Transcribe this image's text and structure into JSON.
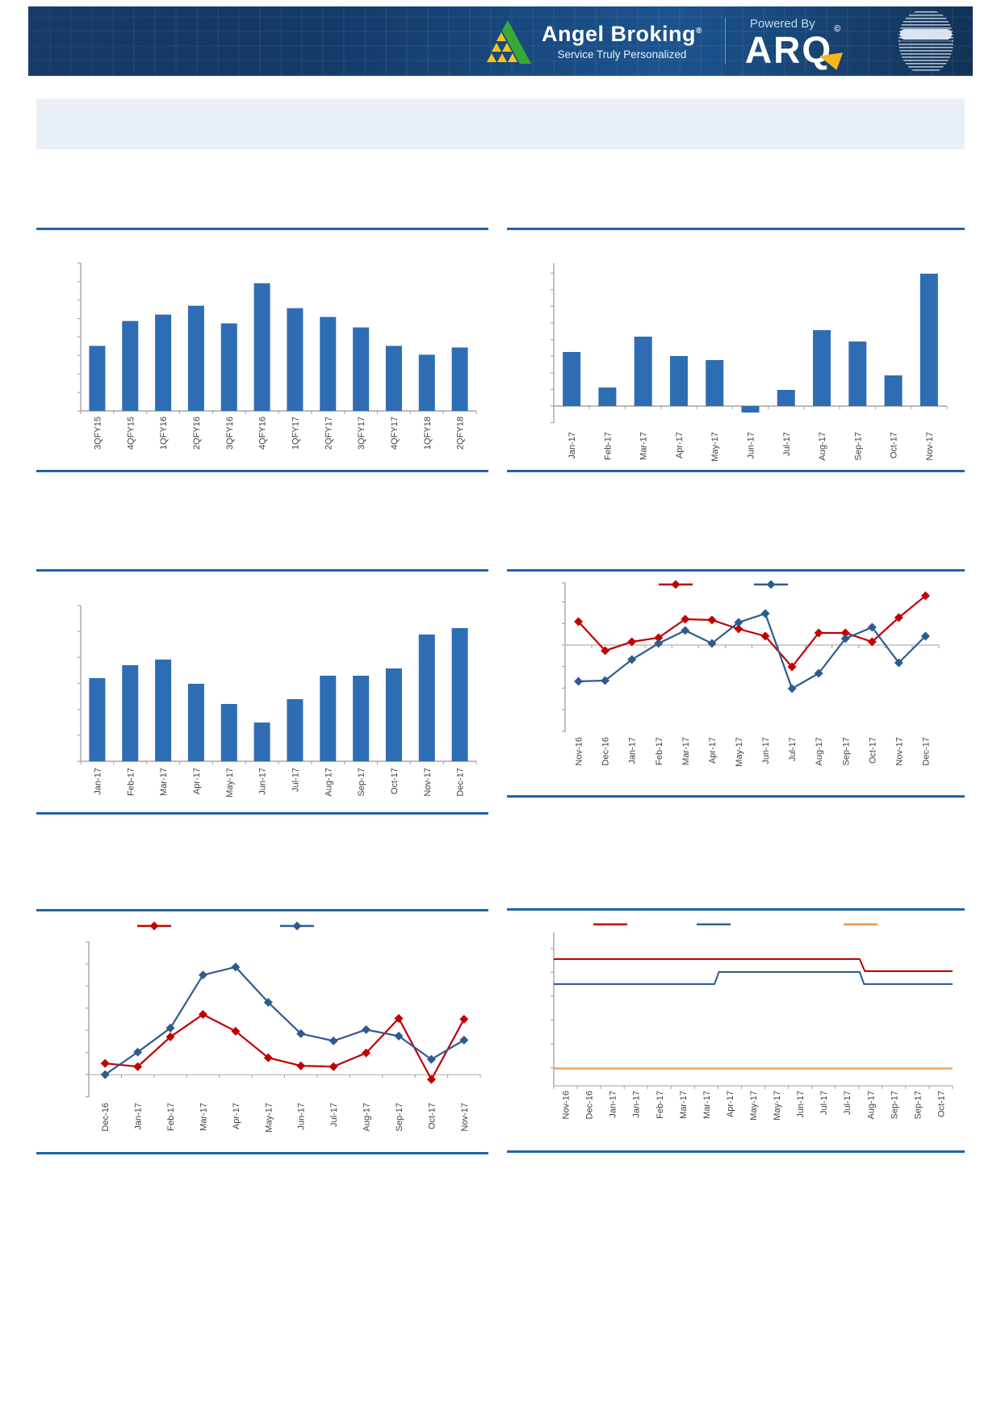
{
  "header": {
    "brand": "Angel Broking",
    "brand_mark": "®",
    "tagline": "Service Truly Personalized",
    "powered_by": "Powered By",
    "product": "ARQ",
    "product_mark": "©"
  },
  "banner": {
    "text": ""
  },
  "colors": {
    "divider": "#2263a7",
    "bar_blue": "#2e6db4",
    "series_red": "#c00000",
    "series_blue": "#2e5b8f",
    "series_orange": "#e8964f",
    "axis": "#a6a6a6",
    "zero_line": "#bfbfbf",
    "label_text": "#3f3f3f",
    "header_bg": "#153f6f",
    "banner_bg": "#eaf0f8",
    "logo_green": "#39a935",
    "logo_yellow": "#f7c51e"
  },
  "chart_data": [
    {
      "id": "quarterly_bar",
      "type": "bar",
      "title": "",
      "categories": [
        "3QFY15",
        "4QFY15",
        "1QFY16",
        "2QFY16",
        "3QFY16",
        "4QFY16",
        "1QFY17",
        "2QFY17",
        "3QFY17",
        "4QFY17",
        "1QFY18",
        "2QFY18"
      ],
      "values": [
        81,
        112,
        120,
        131,
        109,
        159,
        128,
        117,
        104,
        81,
        70,
        79
      ],
      "bar_color": "#2e6db4",
      "ylim": [
        0,
        184
      ],
      "yticks": [
        0,
        23,
        46,
        69,
        92,
        115,
        138,
        161,
        184
      ],
      "grid": false,
      "legend": null,
      "y_tick_labels_visible": false
    },
    {
      "id": "monthly_bar_a",
      "type": "bar",
      "title": "",
      "categories": [
        "Jan-17",
        "Feb-17",
        "Mar-17",
        "Apr-17",
        "May-17",
        "Jun-17",
        "Jul-17",
        "Aug-17",
        "Sep-17",
        "Oct-17",
        "Nov-17"
      ],
      "values": [
        67,
        23,
        86,
        62,
        57,
        -8,
        20,
        94,
        80,
        38,
        164
      ],
      "bar_color": "#2e6db4",
      "ylim": [
        -21,
        177
      ],
      "yticks": [
        -20.6,
        0,
        20.6,
        41.2,
        61.8,
        82.4,
        103,
        123.6,
        144.2,
        164.8
      ],
      "grid": false,
      "legend": null,
      "y_tick_labels_visible": false
    },
    {
      "id": "monthly_bar_b",
      "type": "bar",
      "title": "",
      "categories": [
        "Jan-17",
        "Feb-17",
        "Mar-17",
        "Apr-17",
        "May-17",
        "Jun-17",
        "Jul-17",
        "Aug-17",
        "Sep-17",
        "Oct-17",
        "Nov-17",
        "Dec-17"
      ],
      "values": [
        103,
        119,
        126,
        96,
        71,
        48,
        77,
        106,
        106,
        115,
        157,
        165
      ],
      "bar_color": "#2e6db4",
      "ylim": [
        0,
        193
      ],
      "yticks": [
        0,
        32.2,
        64.3,
        96.5,
        128.7,
        160.8,
        193
      ],
      "grid": false,
      "legend": null,
      "y_tick_labels_visible": false
    },
    {
      "id": "dual_line_a",
      "type": "line",
      "title": "",
      "categories": [
        "Nov-16",
        "Dec-16",
        "Jan-17",
        "Feb-17",
        "Mar-17",
        "Apr-17",
        "May-17",
        "Jun-17",
        "Jul-17",
        "Aug-17",
        "Sep-17",
        "Oct-17",
        "Nov-17",
        "Dec-17"
      ],
      "series": [
        {
          "name": "",
          "color": "#c00000",
          "marker": "diamond",
          "values": [
            29,
            -7,
            4,
            9,
            32,
            31,
            20,
            11,
            -27,
            15,
            15,
            4,
            34,
            61
          ]
        },
        {
          "name": "",
          "color": "#2e5b8f",
          "marker": "diamond",
          "values": [
            -45,
            -44,
            -18,
            2,
            18,
            2,
            28,
            39,
            -54,
            -35,
            8,
            22,
            -22,
            11
          ]
        }
      ],
      "ylim": [
        -108,
        77
      ],
      "yticks": [
        -106.8,
        -80.1,
        -53.4,
        -26.7,
        0,
        26.7,
        53.4,
        77
      ],
      "grid": false,
      "legend": {
        "position": "top",
        "entries": [
          {
            "label": "",
            "color": "#c00000",
            "marker": "diamond"
          },
          {
            "label": "",
            "color": "#2e5b8f",
            "marker": "diamond"
          }
        ]
      },
      "y_tick_labels_visible": false
    },
    {
      "id": "dual_line_b",
      "type": "line",
      "title": "",
      "categories": [
        "Dec-16",
        "Jan-17",
        "Feb-17",
        "Mar-17",
        "Apr-17",
        "May-17",
        "Jun-17",
        "Jul-17",
        "Aug-17",
        "Sep-17",
        "Oct-17",
        "Nov-17"
      ],
      "series": [
        {
          "name": "",
          "color": "#c00000",
          "marker": "diamond",
          "values": [
            14,
            10,
            47,
            75,
            54,
            21,
            11,
            10,
            27,
            70,
            -6,
            69
          ]
        },
        {
          "name": "",
          "color": "#2e5b8f",
          "marker": "diamond",
          "values": [
            0,
            28,
            58,
            124,
            134,
            90,
            51,
            42,
            56,
            48,
            19,
            43
          ]
        }
      ],
      "ylim": [
        -28,
        166
      ],
      "yticks": [
        -27.6,
        0,
        27.6,
        55.2,
        82.8,
        110.4,
        138,
        165
      ],
      "grid": false,
      "legend": {
        "position": "top",
        "entries": [
          {
            "label": "",
            "color": "#c00000",
            "marker": "diamond"
          },
          {
            "label": "",
            "color": "#2e5b8f",
            "marker": "diamond"
          }
        ]
      },
      "y_tick_labels_visible": false
    },
    {
      "id": "step_lines",
      "type": "step",
      "title": "",
      "categories": [
        "Nov-16",
        "Dec-16",
        "Jan-17",
        "Jan-17",
        "Feb-17",
        "Mar-17",
        "Mar-17",
        "Apr-17",
        "May-17",
        "May-17",
        "Jun-17",
        "Jul-17",
        "Jul-17",
        "Aug-17",
        "Sep-17",
        "Sep-17",
        "Oct-17"
      ],
      "series": [
        {
          "name": "",
          "color": "#c00000",
          "points": [
            [
              0,
              157
            ],
            [
              0.767,
              157
            ],
            [
              0.78,
              142
            ],
            [
              1,
              142
            ]
          ]
        },
        {
          "name": "",
          "color": "#2e5b8f",
          "points": [
            [
              0,
              126
            ],
            [
              0.403,
              126
            ],
            [
              0.414,
              141
            ],
            [
              0.767,
              141
            ],
            [
              0.778,
              126
            ],
            [
              1,
              126
            ]
          ]
        },
        {
          "name": "",
          "color": "#e8964f",
          "points": [
            [
              0,
              21.5
            ],
            [
              1,
              21.5
            ]
          ]
        }
      ],
      "ylim": [
        0,
        190
      ],
      "yticks": [
        22.5,
        52,
        81.5,
        111,
        140.5,
        170
      ],
      "grid": false,
      "legend": {
        "position": "top",
        "entries": [
          {
            "label": "",
            "color": "#c00000",
            "marker": "line"
          },
          {
            "label": "",
            "color": "#2e5b8f",
            "marker": "line"
          },
          {
            "label": "",
            "color": "#e8964f",
            "marker": "line"
          }
        ]
      },
      "y_tick_labels_visible": false
    }
  ]
}
